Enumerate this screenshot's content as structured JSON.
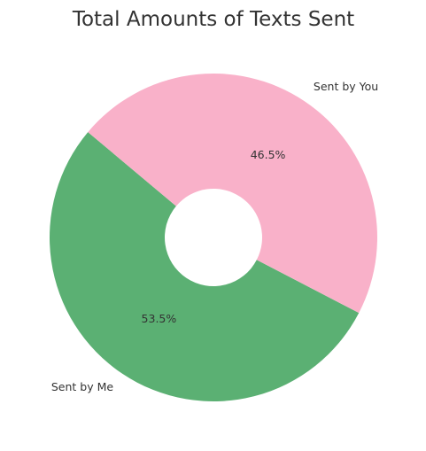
{
  "chart_data": {
    "type": "pie",
    "style": "donut",
    "title": "Total Amounts of Texts Sent",
    "categories": [
      "Sent by Me",
      "Sent by You"
    ],
    "values": [
      53.5,
      46.5
    ],
    "value_labels": [
      "53.5%",
      "46.5%"
    ],
    "colors": [
      "#5bb073",
      "#f9b1c9"
    ],
    "start_angle_deg": 140,
    "direction": "counterclockwise",
    "legend": "none"
  }
}
